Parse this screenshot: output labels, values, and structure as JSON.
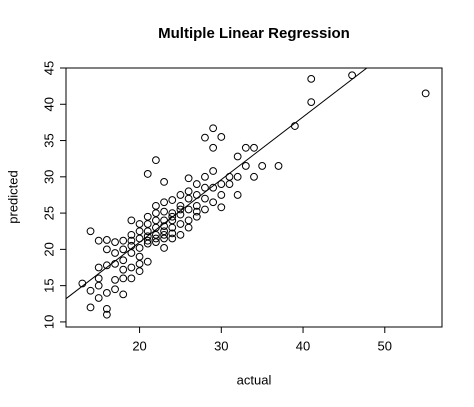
{
  "chart_data": {
    "type": "scatter",
    "title": "Multiple Linear Regression",
    "x_label": "actual",
    "y_label": "predicted",
    "x": [
      13,
      14,
      14,
      14,
      15,
      15,
      15,
      15,
      15,
      16,
      16,
      16,
      16,
      16,
      16,
      17,
      17,
      17,
      17,
      17,
      18,
      18,
      18,
      18,
      18,
      18,
      19,
      19,
      19,
      19,
      19,
      19,
      19,
      20,
      20,
      20,
      20,
      20,
      20,
      20,
      21,
      21,
      21,
      21,
      21,
      21,
      21,
      21,
      22,
      22,
      22,
      22,
      22,
      22,
      22,
      22,
      23,
      23,
      23,
      23,
      23,
      23,
      23,
      23,
      23,
      24,
      24,
      24,
      24,
      24,
      24,
      24,
      25,
      25,
      25,
      25,
      25,
      25,
      26,
      26,
      26,
      26,
      26,
      26,
      27,
      27,
      27,
      27,
      27,
      28,
      28,
      28,
      28,
      28,
      29,
      29,
      29,
      29,
      29,
      30,
      30,
      30,
      30,
      31,
      31,
      32,
      32,
      32,
      33,
      33,
      34,
      34,
      35,
      37,
      39,
      41,
      41,
      46,
      55
    ],
    "y": [
      15.3,
      12,
      14.3,
      22.5,
      13.3,
      16,
      17.5,
      21.2,
      15,
      11,
      11.8,
      14,
      17.8,
      20,
      21.3,
      15.8,
      18,
      19.5,
      21,
      14.5,
      16,
      18.5,
      20,
      21.2,
      13.8,
      17.2,
      17.5,
      19.5,
      20.5,
      22,
      24,
      16,
      21.2,
      18,
      20.2,
      21.5,
      22.5,
      23.5,
      19,
      17,
      18.3,
      20.8,
      21.8,
      22.5,
      23.5,
      24.5,
      30.4,
      21.2,
      21,
      22,
      23,
      24,
      25,
      26,
      32.3,
      21.5,
      21.5,
      22.5,
      23.2,
      24,
      25.2,
      26.5,
      29.3,
      20.2,
      22,
      21.5,
      23,
      24,
      25,
      26.8,
      22.2,
      24.5,
      22,
      23.5,
      24.8,
      26,
      27.5,
      25.5,
      24,
      25.5,
      27,
      28,
      29.8,
      23,
      24.5,
      26,
      27.5,
      29,
      25.2,
      25.5,
      27,
      30,
      35.4,
      28.5,
      26.5,
      28.5,
      30.8,
      34,
      36.7,
      27.5,
      29,
      35.5,
      25.8,
      29,
      30,
      30,
      32.8,
      27.5,
      34,
      31.5,
      30,
      34,
      31.5,
      31.5,
      37,
      40.3,
      43.5,
      44,
      41.5
    ],
    "fit_line": {
      "intercept": 3.7,
      "slope": 0.864
    },
    "xlim": [
      11,
      57
    ],
    "ylim": [
      9.3,
      45
    ],
    "xticks": [
      20,
      30,
      40,
      50
    ],
    "yticks": [
      10,
      15,
      20,
      25,
      30,
      35,
      40,
      45
    ],
    "color": "#000000"
  }
}
